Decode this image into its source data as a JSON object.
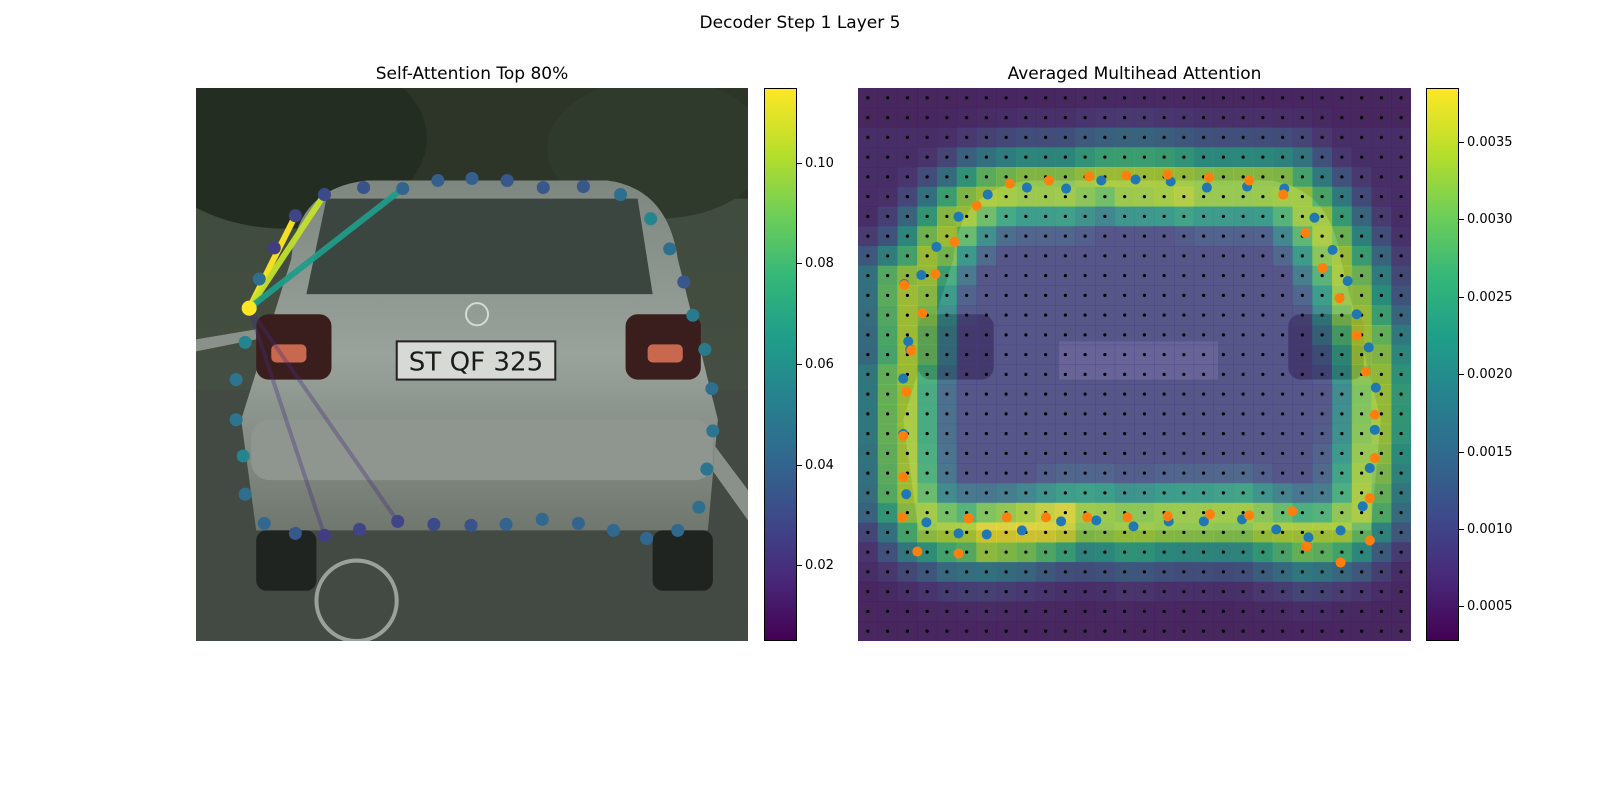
{
  "figure": {
    "suptitle": "Decoder Step 1 Layer 5"
  },
  "left_plot": {
    "title": "Self-Attention Top 80%",
    "photo_plate_text": "ST QF 325",
    "colorbar": {
      "ticks": [
        "0.02",
        "0.04",
        "0.06",
        "0.08",
        "0.10"
      ],
      "tick_values": [
        0.02,
        0.04,
        0.06,
        0.08,
        0.1
      ],
      "range": [
        0.005,
        0.115
      ]
    }
  },
  "right_plot": {
    "title": "Averaged Multihead Attention",
    "colorbar": {
      "ticks": [
        "0.0005",
        "0.0010",
        "0.0015",
        "0.0020",
        "0.0025",
        "0.0030",
        "0.0035"
      ],
      "tick_values": [
        0.0005,
        0.001,
        0.0015,
        0.002,
        0.0025,
        0.003,
        0.0035
      ],
      "range": [
        0.00028,
        0.00385
      ]
    }
  },
  "colors": {
    "cmap": "viridis",
    "orange": "#ff7f0e",
    "blue": "#1f77b4",
    "query": "#fde725"
  },
  "chart_data": [
    {
      "type": "scatter",
      "title": "Self-Attention Top 80%",
      "xlim": [
        0,
        550
      ],
      "ylim": [
        550,
        0
      ],
      "series": [
        {
          "points": [
            {
              "x": 53,
              "y": 219,
              "v": 0.115
            },
            {
              "x": 49,
              "y": 253,
              "v": 0.055
            },
            {
              "x": 40,
              "y": 290,
              "v": 0.048
            },
            {
              "x": 40,
              "y": 330,
              "v": 0.048
            },
            {
              "x": 47,
              "y": 366,
              "v": 0.055
            },
            {
              "x": 49,
              "y": 404,
              "v": 0.045
            },
            {
              "x": 68,
              "y": 433,
              "v": 0.042
            },
            {
              "x": 99,
              "y": 443,
              "v": 0.035
            },
            {
              "x": 128,
              "y": 445,
              "v": 0.025
            },
            {
              "x": 163,
              "y": 439,
              "v": 0.028
            },
            {
              "x": 201,
              "y": 431,
              "v": 0.028
            },
            {
              "x": 237,
              "y": 434,
              "v": 0.03
            },
            {
              "x": 274,
              "y": 435,
              "v": 0.033
            },
            {
              "x": 309,
              "y": 434,
              "v": 0.04
            },
            {
              "x": 345,
              "y": 429,
              "v": 0.042
            },
            {
              "x": 381,
              "y": 433,
              "v": 0.04
            },
            {
              "x": 416,
              "y": 440,
              "v": 0.042
            },
            {
              "x": 449,
              "y": 448,
              "v": 0.042
            },
            {
              "x": 480,
              "y": 440,
              "v": 0.042
            },
            {
              "x": 501,
              "y": 417,
              "v": 0.045
            },
            {
              "x": 509,
              "y": 379,
              "v": 0.048
            },
            {
              "x": 515,
              "y": 341,
              "v": 0.048
            },
            {
              "x": 514,
              "y": 299,
              "v": 0.045
            },
            {
              "x": 507,
              "y": 260,
              "v": 0.05
            },
            {
              "x": 495,
              "y": 226,
              "v": 0.05
            },
            {
              "x": 486,
              "y": 193,
              "v": 0.035
            },
            {
              "x": 472,
              "y": 160,
              "v": 0.045
            },
            {
              "x": 453,
              "y": 130,
              "v": 0.055
            },
            {
              "x": 423,
              "y": 106,
              "v": 0.045
            },
            {
              "x": 386,
              "y": 98,
              "v": 0.035
            },
            {
              "x": 346,
              "y": 99,
              "v": 0.035
            },
            {
              "x": 310,
              "y": 92,
              "v": 0.035
            },
            {
              "x": 275,
              "y": 90,
              "v": 0.038
            },
            {
              "x": 241,
              "y": 92,
              "v": 0.038
            },
            {
              "x": 206,
              "y": 100,
              "v": 0.04
            },
            {
              "x": 167,
              "y": 99,
              "v": 0.033
            },
            {
              "x": 128,
              "y": 106,
              "v": 0.03
            },
            {
              "x": 99,
              "y": 127,
              "v": 0.028
            },
            {
              "x": 78,
              "y": 159,
              "v": 0.025
            },
            {
              "x": 63,
              "y": 190,
              "v": 0.045
            }
          ]
        }
      ],
      "attention_lines": [
        {
          "from": 0,
          "to": 37,
          "weight": 0.115
        },
        {
          "from": 0,
          "to": 36,
          "weight": 0.105
        },
        {
          "from": 0,
          "to": 34,
          "weight": 0.065
        },
        {
          "from": 0,
          "to": 8,
          "weight": 0.02
        },
        {
          "from": 0,
          "to": 10,
          "weight": 0.02
        }
      ]
    },
    {
      "type": "heatmap",
      "title": "Averaged Multihead Attention",
      "grid_size": 28,
      "xlim": [
        0,
        550
      ],
      "ylim": [
        550,
        0
      ],
      "series": [
        {
          "points": [
            {
              "x": 46,
              "y": 195
            },
            {
              "x": 52,
              "y": 260
            },
            {
              "x": 45,
              "y": 289
            },
            {
              "x": 45,
              "y": 344
            },
            {
              "x": 48,
              "y": 404
            },
            {
              "x": 68,
              "y": 432
            },
            {
              "x": 100,
              "y": 443
            },
            {
              "x": 128,
              "y": 444
            },
            {
              "x": 163,
              "y": 440
            },
            {
              "x": 202,
              "y": 431
            },
            {
              "x": 237,
              "y": 430
            },
            {
              "x": 274,
              "y": 436
            },
            {
              "x": 309,
              "y": 431
            },
            {
              "x": 344,
              "y": 431
            },
            {
              "x": 382,
              "y": 429
            },
            {
              "x": 416,
              "y": 439
            },
            {
              "x": 448,
              "y": 447
            },
            {
              "x": 480,
              "y": 440
            },
            {
              "x": 502,
              "y": 416
            },
            {
              "x": 509,
              "y": 378
            },
            {
              "x": 514,
              "y": 340
            },
            {
              "x": 515,
              "y": 298
            },
            {
              "x": 508,
              "y": 258
            },
            {
              "x": 496,
              "y": 225
            },
            {
              "x": 487,
              "y": 192
            },
            {
              "x": 472,
              "y": 161
            },
            {
              "x": 454,
              "y": 129
            },
            {
              "x": 424,
              "y": 100
            },
            {
              "x": 387,
              "y": 98
            },
            {
              "x": 347,
              "y": 99
            },
            {
              "x": 311,
              "y": 93
            },
            {
              "x": 276,
              "y": 91
            },
            {
              "x": 242,
              "y": 92
            },
            {
              "x": 207,
              "y": 100
            },
            {
              "x": 168,
              "y": 99
            },
            {
              "x": 129,
              "y": 106
            },
            {
              "x": 100,
              "y": 128
            },
            {
              "x": 78,
              "y": 158
            },
            {
              "x": 63,
              "y": 186
            },
            {
              "x": 50,
              "y": 252
            }
          ]
        },
        {
          "points": [
            {
              "x": 46,
              "y": 196
            },
            {
              "x": 53,
              "y": 261
            },
            {
              "x": 64,
              "y": 224
            },
            {
              "x": 77,
              "y": 185
            },
            {
              "x": 96,
              "y": 153
            },
            {
              "x": 118,
              "y": 117
            },
            {
              "x": 151,
              "y": 95
            },
            {
              "x": 190,
              "y": 92
            },
            {
              "x": 230,
              "y": 88
            },
            {
              "x": 267,
              "y": 87
            },
            {
              "x": 308,
              "y": 86
            },
            {
              "x": 349,
              "y": 89
            },
            {
              "x": 389,
              "y": 92
            },
            {
              "x": 423,
              "y": 106
            },
            {
              "x": 445,
              "y": 144
            },
            {
              "x": 462,
              "y": 179
            },
            {
              "x": 479,
              "y": 209
            },
            {
              "x": 496,
              "y": 246
            },
            {
              "x": 505,
              "y": 282
            },
            {
              "x": 514,
              "y": 325
            },
            {
              "x": 514,
              "y": 368
            },
            {
              "x": 509,
              "y": 408
            },
            {
              "x": 509,
              "y": 450
            },
            {
              "x": 480,
              "y": 472
            },
            {
              "x": 446,
              "y": 456
            },
            {
              "x": 432,
              "y": 421
            },
            {
              "x": 389,
              "y": 425
            },
            {
              "x": 350,
              "y": 424
            },
            {
              "x": 308,
              "y": 426
            },
            {
              "x": 268,
              "y": 427
            },
            {
              "x": 228,
              "y": 427
            },
            {
              "x": 187,
              "y": 427
            },
            {
              "x": 148,
              "y": 427
            },
            {
              "x": 110,
              "y": 428
            },
            {
              "x": 100,
              "y": 463
            },
            {
              "x": 59,
              "y": 461
            },
            {
              "x": 44,
              "y": 427
            },
            {
              "x": 45,
              "y": 387
            },
            {
              "x": 45,
              "y": 346
            },
            {
              "x": 48,
              "y": 302
            }
          ]
        }
      ]
    }
  ]
}
